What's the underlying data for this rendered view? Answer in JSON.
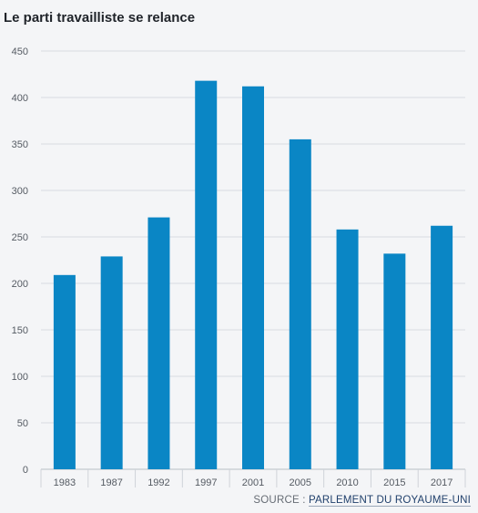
{
  "chart_data": {
    "type": "bar",
    "title": "Le parti travailliste se relance",
    "categories": [
      "1983",
      "1987",
      "1992",
      "1997",
      "2001",
      "2005",
      "2010",
      "2015",
      "2017"
    ],
    "values": [
      209,
      229,
      271,
      418,
      412,
      355,
      258,
      232,
      262
    ],
    "ylim": [
      0,
      450
    ],
    "yticks": [
      0,
      50,
      100,
      150,
      200,
      250,
      300,
      350,
      400,
      450
    ],
    "grid": true,
    "bar_color": "#0a86c5"
  },
  "source": {
    "prefix": "SOURCE :",
    "name": "PARLEMENT DU ROYAUME-UNI"
  }
}
